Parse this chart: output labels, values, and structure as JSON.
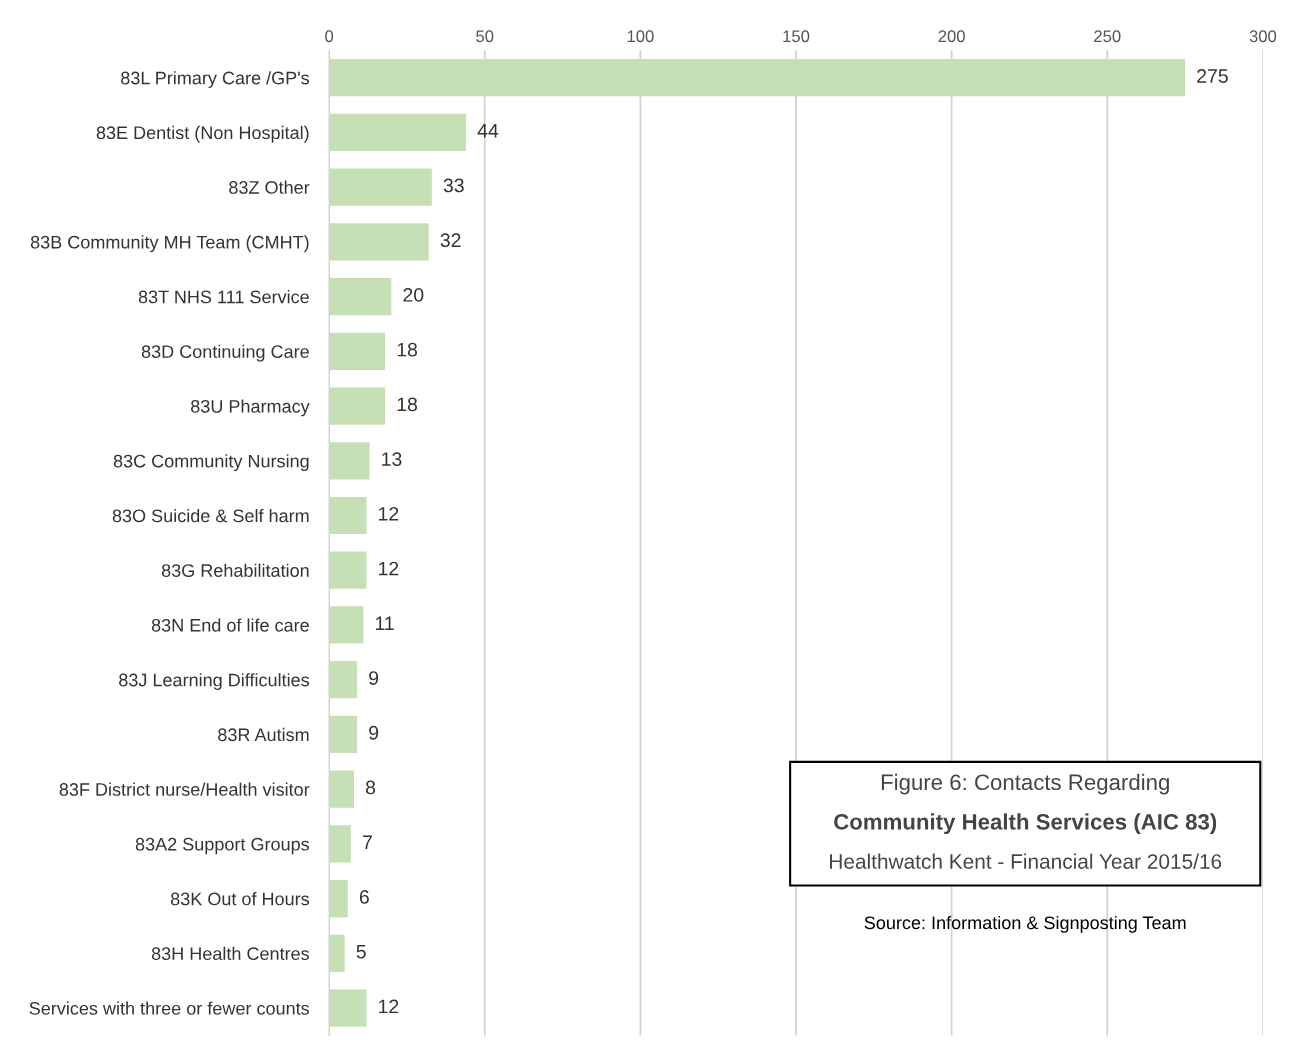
{
  "chart_data": {
    "type": "bar",
    "orientation": "horizontal",
    "title": "Figure 6: Contacts Regarding",
    "subtitle": "Community Health Services (AIC 83)",
    "annotations": [
      "Healthwatch Kent - Financial Year 2015/16",
      "Source: Information & Signposting Team"
    ],
    "categories": [
      "83L Primary Care /GP's",
      "83E Dentist (Non Hospital)",
      "83Z Other",
      "83B Community MH Team (CMHT)",
      "83T NHS 111 Service",
      "83D Continuing Care",
      "83U Pharmacy",
      "83C Community Nursing",
      "83O Suicide & Self harm",
      "83G Rehabilitation",
      "83N End of life care",
      "83J Learning Difficulties",
      "83R Autism",
      "83F District nurse/Health visitor",
      "83A2 Support Groups",
      "83K Out of Hours",
      "83H Health Centres",
      "Services with three or fewer counts"
    ],
    "values": [
      275,
      44,
      33,
      32,
      20,
      18,
      18,
      13,
      12,
      12,
      11,
      9,
      9,
      8,
      7,
      6,
      5,
      12
    ],
    "color": "#c5e0b4",
    "xlim": [
      0,
      300
    ],
    "xticks": [
      0,
      50,
      100,
      150,
      200,
      250,
      300
    ],
    "grid": "x",
    "data_labels": true
  }
}
